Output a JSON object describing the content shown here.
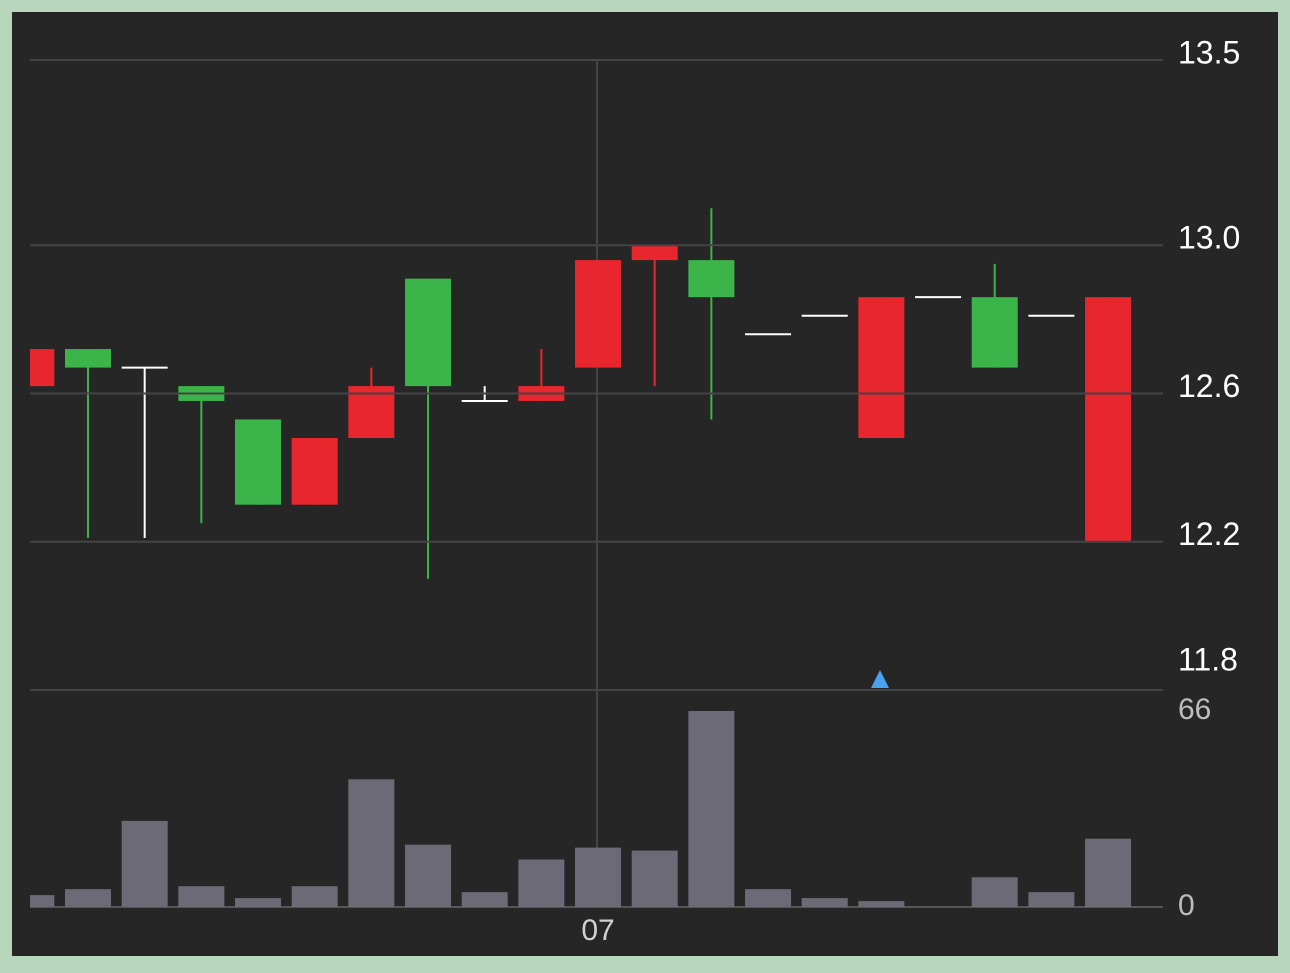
{
  "chart_data": [
    {
      "type": "candlestick",
      "categories": [
        null,
        null,
        null,
        null,
        null,
        null,
        null,
        null,
        null,
        null,
        "07",
        null,
        null,
        null,
        null,
        null,
        null,
        null,
        null,
        null
      ],
      "open": [
        12.72,
        12.67,
        12.67,
        12.58,
        12.3,
        12.48,
        12.62,
        12.62,
        12.58,
        12.62,
        12.96,
        13.0,
        12.86,
        12.76,
        12.81,
        12.86,
        12.86,
        12.67,
        12.81,
        12.86
      ],
      "high": [
        12.72,
        12.72,
        12.67,
        12.62,
        12.53,
        12.48,
        12.67,
        12.91,
        12.62,
        12.72,
        12.96,
        13.0,
        13.1,
        12.76,
        12.81,
        12.86,
        12.86,
        12.95,
        12.81,
        12.86
      ],
      "low": [
        12.62,
        12.21,
        12.21,
        12.25,
        12.3,
        12.3,
        12.48,
        12.1,
        12.58,
        12.58,
        12.67,
        12.62,
        12.53,
        12.76,
        12.81,
        12.48,
        12.86,
        12.67,
        12.81,
        12.2
      ],
      "close": [
        12.62,
        12.72,
        12.67,
        12.62,
        12.53,
        12.3,
        12.48,
        12.91,
        12.58,
        12.58,
        12.67,
        12.96,
        12.96,
        12.76,
        12.81,
        12.48,
        12.86,
        12.86,
        12.81,
        12.2
      ],
      "up_color": "#3bb54a",
      "down_color": "#e8262e",
      "flat_color": "#ffffff",
      "ylim": [
        11.8,
        13.5
      ],
      "yticks": [
        11.8,
        12.2,
        12.6,
        {
          "value": 13,
          "label": "13.0"
        },
        13.5
      ],
      "grid": true
    },
    {
      "type": "bar",
      "values": [
        4,
        6,
        29,
        7,
        3,
        7,
        43,
        21,
        5,
        16,
        20,
        19,
        66,
        6,
        3,
        2,
        0,
        10,
        5,
        23
      ],
      "color": "#6b6a76",
      "ylim": [
        0,
        66
      ],
      "yticks": [
        0,
        66
      ]
    }
  ]
}
